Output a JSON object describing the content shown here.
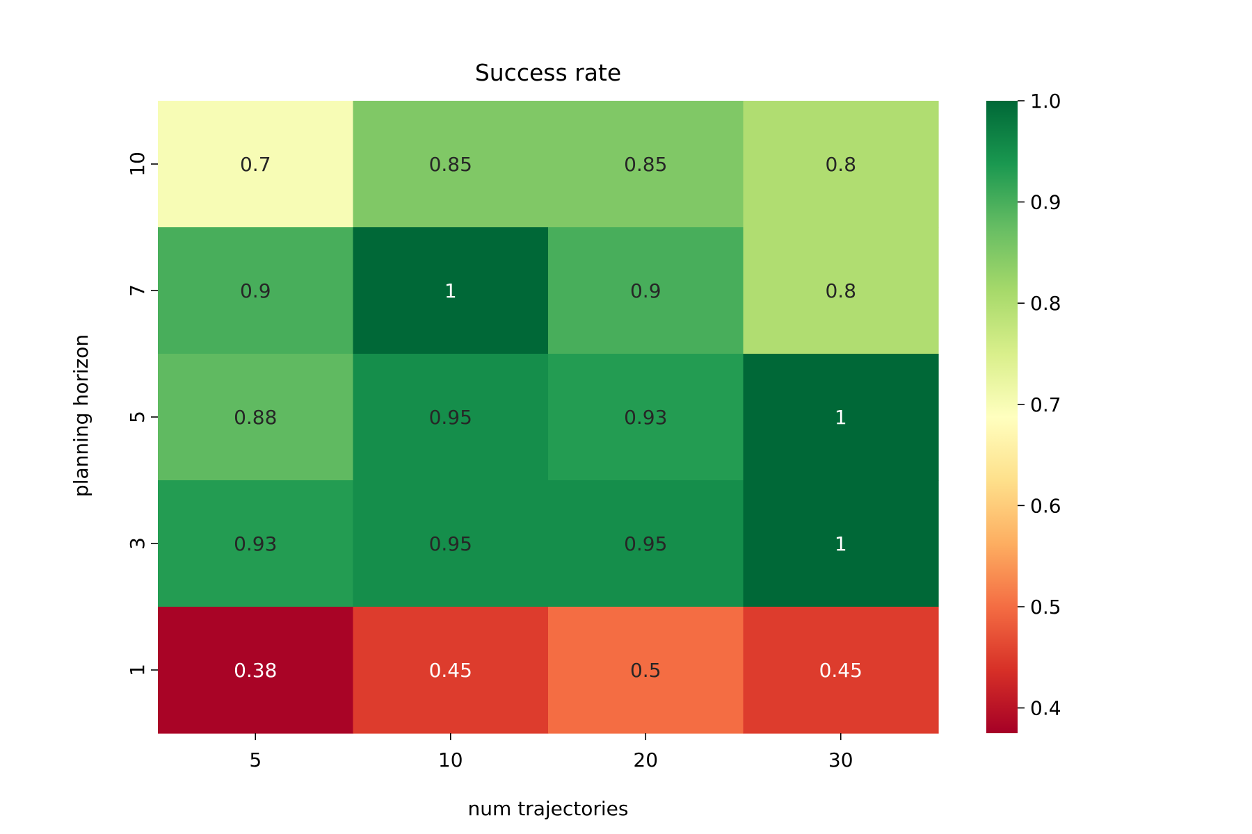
{
  "chart_data": {
    "type": "heatmap",
    "title": "Success rate",
    "xlabel": "num trajectories",
    "ylabel": "planning horizon",
    "x_categories": [
      "5",
      "10",
      "20",
      "30"
    ],
    "y_categories": [
      "10",
      "7",
      "5",
      "3",
      "1"
    ],
    "values": [
      [
        0.7,
        0.85,
        0.85,
        0.8
      ],
      [
        0.9,
        1,
        0.9,
        0.8
      ],
      [
        0.88,
        0.95,
        0.93,
        1
      ],
      [
        0.93,
        0.95,
        0.95,
        1
      ],
      [
        0.38,
        0.45,
        0.5,
        0.45
      ]
    ],
    "cell_labels": [
      [
        "0.7",
        "0.85",
        "0.85",
        "0.8"
      ],
      [
        "0.9",
        "1",
        "0.9",
        "0.8"
      ],
      [
        "0.88",
        "0.95",
        "0.93",
        "1"
      ],
      [
        "0.93",
        "0.95",
        "0.95",
        "1"
      ],
      [
        "0.38",
        "0.45",
        "0.5",
        "0.45"
      ]
    ],
    "colormap": "RdYlGn",
    "vmin": 0.375,
    "vmax": 1.0,
    "colorbar_ticks": [
      "0.4",
      "0.5",
      "0.6",
      "0.7",
      "0.8",
      "0.9",
      "1.0"
    ],
    "colors": {
      "annotation_dark": "#262626",
      "annotation_light": "#ffffff"
    }
  }
}
